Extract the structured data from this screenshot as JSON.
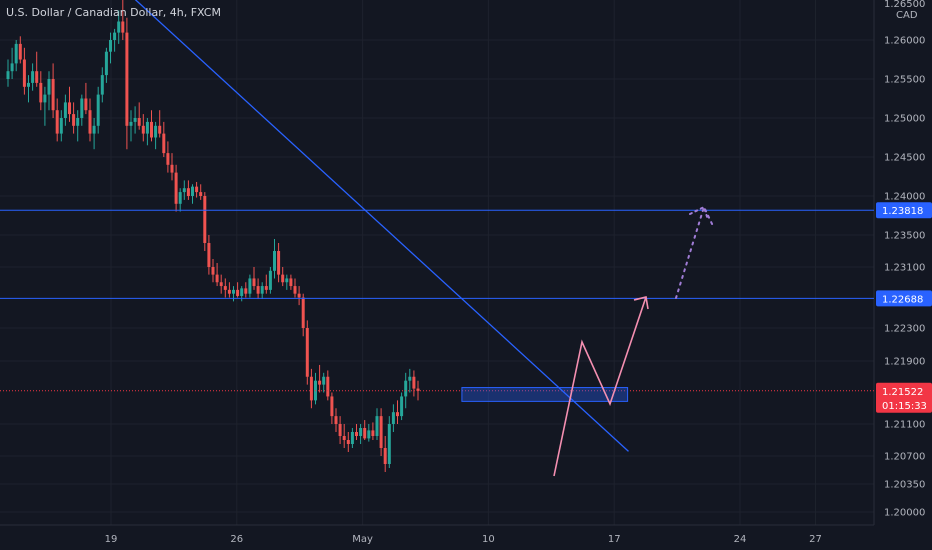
{
  "chart_data": {
    "type": "candlestick",
    "title": "U.S. Dollar / Canadian Dollar, 4h, FXCM",
    "currency": "CAD",
    "ylim": [
      1.1985,
      1.2658
    ],
    "y_ticks": [
      "1.26000",
      "1.25500",
      "1.25000",
      "1.24500",
      "1.24000",
      "1.23500",
      "1.23100",
      "1.22300",
      "1.21900",
      "1.21100",
      "1.20700",
      "1.20350",
      "1.20000"
    ],
    "y_top_partial": "1.26500",
    "x_labels": [
      {
        "label": "19",
        "bar": 0
      },
      {
        "label": "26",
        "bar": 30
      },
      {
        "label": "May",
        "bar": 60
      },
      {
        "label": "10",
        "bar": 90
      },
      {
        "label": "17",
        "bar": 120
      },
      {
        "label": "24",
        "bar": 150
      },
      {
        "label": "27",
        "bar": 168
      }
    ],
    "ohlc": [
      [
        1.255,
        1.2575,
        1.254,
        1.256
      ],
      [
        1.256,
        1.259,
        1.255,
        1.257
      ],
      [
        1.257,
        1.26,
        1.256,
        1.2595
      ],
      [
        1.2595,
        1.2605,
        1.257,
        1.2575
      ],
      [
        1.2575,
        1.259,
        1.253,
        1.254
      ],
      [
        1.254,
        1.2555,
        1.252,
        1.2545
      ],
      [
        1.2545,
        1.257,
        1.2535,
        1.256
      ],
      [
        1.256,
        1.2585,
        1.254,
        1.2545
      ],
      [
        1.2545,
        1.256,
        1.251,
        1.252
      ],
      [
        1.252,
        1.254,
        1.249,
        1.253
      ],
      [
        1.253,
        1.256,
        1.251,
        1.255
      ],
      [
        1.255,
        1.257,
        1.25,
        1.251
      ],
      [
        1.251,
        1.2525,
        1.247,
        1.248
      ],
      [
        1.248,
        1.251,
        1.247,
        1.25
      ],
      [
        1.25,
        1.253,
        1.249,
        1.252
      ],
      [
        1.252,
        1.254,
        1.2495,
        1.2505
      ],
      [
        1.2505,
        1.252,
        1.248,
        1.249
      ],
      [
        1.249,
        1.251,
        1.247,
        1.25
      ],
      [
        1.25,
        1.253,
        1.249,
        1.2525
      ],
      [
        1.2525,
        1.2545,
        1.2505,
        1.251
      ],
      [
        1.251,
        1.2525,
        1.247,
        1.248
      ],
      [
        1.248,
        1.25,
        1.246,
        1.249
      ],
      [
        1.249,
        1.254,
        1.248,
        1.253
      ],
      [
        1.253,
        1.2565,
        1.252,
        1.2555
      ],
      [
        1.2555,
        1.259,
        1.2545,
        1.2585
      ],
      [
        1.2585,
        1.261,
        1.257,
        1.26
      ],
      [
        1.26,
        1.2615,
        1.2585,
        1.261
      ],
      [
        1.261,
        1.264,
        1.2595,
        1.2625
      ],
      [
        1.2625,
        1.266,
        1.26,
        1.261
      ],
      [
        1.261,
        1.263,
        1.246,
        1.249
      ],
      [
        1.249,
        1.251,
        1.247,
        1.2495
      ],
      [
        1.2495,
        1.2515,
        1.248,
        1.25
      ],
      [
        1.25,
        1.252,
        1.2485,
        1.249
      ],
      [
        1.249,
        1.2505,
        1.247,
        1.248
      ],
      [
        1.248,
        1.25,
        1.2465,
        1.2495
      ],
      [
        1.2495,
        1.251,
        1.247,
        1.2475
      ],
      [
        1.2475,
        1.2495,
        1.246,
        1.249
      ],
      [
        1.249,
        1.251,
        1.2475,
        1.248
      ],
      [
        1.248,
        1.2495,
        1.245,
        1.2455
      ],
      [
        1.2455,
        1.247,
        1.243,
        1.244
      ],
      [
        1.244,
        1.2455,
        1.242,
        1.243
      ],
      [
        1.243,
        1.244,
        1.238,
        1.239
      ],
      [
        1.239,
        1.241,
        1.238,
        1.2405
      ],
      [
        1.2405,
        1.242,
        1.2395,
        1.241
      ],
      [
        1.241,
        1.242,
        1.2395,
        1.24
      ],
      [
        1.24,
        1.2415,
        1.239,
        1.2412
      ],
      [
        1.2412,
        1.2418,
        1.2398,
        1.2405
      ],
      [
        1.2405,
        1.2415,
        1.2395,
        1.24
      ],
      [
        1.24,
        1.2405,
        1.233,
        1.234
      ],
      [
        1.234,
        1.235,
        1.23,
        1.231
      ],
      [
        1.231,
        1.232,
        1.229,
        1.23
      ],
      [
        1.23,
        1.2315,
        1.2285,
        1.229
      ],
      [
        1.229,
        1.23,
        1.2275,
        1.2285
      ],
      [
        1.2285,
        1.2295,
        1.227,
        1.228
      ],
      [
        1.228,
        1.229,
        1.227,
        1.2275
      ],
      [
        1.2275,
        1.2285,
        1.2265,
        1.228
      ],
      [
        1.228,
        1.229,
        1.227,
        1.2272
      ],
      [
        1.2272,
        1.2285,
        1.2265,
        1.2282
      ],
      [
        1.2282,
        1.229,
        1.227,
        1.2275
      ],
      [
        1.2275,
        1.23,
        1.227,
        1.2295
      ],
      [
        1.2295,
        1.231,
        1.228,
        1.2285
      ],
      [
        1.2285,
        1.2295,
        1.2268,
        1.2275
      ],
      [
        1.2275,
        1.229,
        1.2268,
        1.2285
      ],
      [
        1.2285,
        1.23,
        1.2275,
        1.228
      ],
      [
        1.228,
        1.231,
        1.2275,
        1.2305
      ],
      [
        1.2305,
        1.2345,
        1.2295,
        1.233
      ],
      [
        1.233,
        1.234,
        1.229,
        1.23
      ],
      [
        1.23,
        1.231,
        1.2285,
        1.229
      ],
      [
        1.229,
        1.23,
        1.228,
        1.2295
      ],
      [
        1.2295,
        1.23,
        1.228,
        1.2285
      ],
      [
        1.2285,
        1.2295,
        1.227,
        1.2275
      ],
      [
        1.2275,
        1.2285,
        1.226,
        1.227
      ],
      [
        1.227,
        1.2275,
        1.222,
        1.223
      ],
      [
        1.223,
        1.224,
        1.216,
        1.217
      ],
      [
        1.217,
        1.218,
        1.213,
        1.214
      ],
      [
        1.214,
        1.2175,
        1.2135,
        1.2165
      ],
      [
        1.2165,
        1.2185,
        1.215,
        1.216
      ],
      [
        1.216,
        1.2175,
        1.215,
        1.217
      ],
      [
        1.217,
        1.2178,
        1.214,
        1.2145
      ],
      [
        1.2145,
        1.215,
        1.211,
        1.212
      ],
      [
        1.212,
        1.213,
        1.21,
        1.211
      ],
      [
        1.211,
        1.212,
        1.2085,
        1.2095
      ],
      [
        1.2095,
        1.211,
        1.208,
        1.209
      ],
      [
        1.209,
        1.21,
        1.2075,
        1.2085
      ],
      [
        1.2085,
        1.2105,
        1.208,
        1.21
      ],
      [
        1.21,
        1.211,
        1.209,
        1.2095
      ],
      [
        1.2095,
        1.211,
        1.2085,
        1.2105
      ],
      [
        1.2105,
        1.2115,
        1.209,
        1.2092
      ],
      [
        1.2092,
        1.211,
        1.2088,
        1.2102
      ],
      [
        1.2102,
        1.2112,
        1.209,
        1.2095
      ],
      [
        1.2095,
        1.213,
        1.209,
        1.212
      ],
      [
        1.212,
        1.213,
        1.207,
        1.208
      ],
      [
        1.208,
        1.2095,
        1.205,
        1.206
      ],
      [
        1.206,
        1.212,
        1.2055,
        1.211
      ],
      [
        1.211,
        1.2135,
        1.21,
        1.2125
      ],
      [
        1.2125,
        1.214,
        1.211,
        1.212
      ],
      [
        1.212,
        1.215,
        1.2115,
        1.2145
      ],
      [
        1.2145,
        1.2175,
        1.213,
        1.2165
      ],
      [
        1.2165,
        1.218,
        1.215,
        1.217
      ],
      [
        1.217,
        1.2178,
        1.2145,
        1.2155
      ],
      [
        1.2155,
        1.2165,
        1.214,
        1.2152
      ]
    ],
    "horizontal_levels": [
      {
        "value": 1.23818,
        "label": "1.23818",
        "color": "#2962ff"
      },
      {
        "value": 1.22688,
        "label": "1.22688",
        "color": "#2962ff"
      }
    ],
    "current_price": {
      "value": 1.21522,
      "label": "1.21522",
      "countdown": "01:15:33",
      "color": "#f23645"
    },
    "trendline": {
      "points": [
        {
          "bar": 29,
          "y": 1.2665
        },
        {
          "bar": 115,
          "y": 1.2077
        }
      ],
      "color": "#2962ff"
    },
    "support_zone": {
      "bar_start": 79,
      "bar_end": 116,
      "y_low": 1.214,
      "y_high": 1.2155,
      "color": "#2962ff"
    },
    "projection": {
      "color": "#f48fb1",
      "points": [
        {
          "bar": 100,
          "y": 1.2043
        },
        {
          "bar": 106,
          "y": 1.2205
        },
        {
          "bar": 111,
          "y": 1.2145
        },
        {
          "bar": 119,
          "y": 1.2258
        }
      ],
      "arrow_tip": {
        "bar": 119,
        "y": 1.2258
      }
    },
    "dotted_projection": {
      "color": "#a07cd6",
      "points": [
        {
          "bar": 124,
          "y": 1.2272
        },
        {
          "bar": 134,
          "y": 1.238
        }
      ],
      "tail": [
        {
          "bar": 134,
          "y": 1.238
        },
        {
          "bar": 136,
          "y": 1.2365
        }
      ]
    },
    "colors": {
      "up": "#26a69a",
      "down": "#ef5350",
      "background": "#131722",
      "grid": "#1e222d",
      "axis_text": "#b2b5be"
    }
  }
}
